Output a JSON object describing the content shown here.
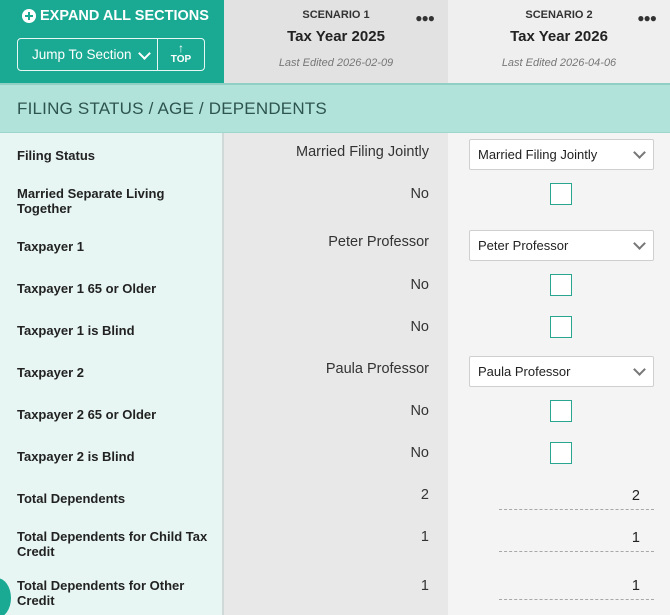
{
  "header": {
    "expand_all_label": "EXPAND ALL SECTIONS",
    "jump_label": "Jump To Section",
    "top_label": "TOP"
  },
  "scenarios": [
    {
      "label": "SCENARIO 1",
      "title": "Tax Year 2025",
      "edited": "Last Edited 2026-02-09"
    },
    {
      "label": "SCENARIO 2",
      "title": "Tax Year 2026",
      "edited": "Last Edited 2026-04-06"
    }
  ],
  "section": {
    "title": "FILING STATUS / AGE / DEPENDENTS"
  },
  "rows": [
    {
      "label": "Filing Status",
      "s1": "Married Filing Jointly",
      "s2": "Married Filing Jointly",
      "s2_type": "select"
    },
    {
      "label": "Married Separate Living Together",
      "s1": "No",
      "s2_type": "checkbox",
      "s2_checked": false
    },
    {
      "label": "Taxpayer 1",
      "s1": "Peter Professor",
      "s2": "Peter Professor",
      "s2_type": "select"
    },
    {
      "label": "Taxpayer 1 65 or Older",
      "s1": "No",
      "s2_type": "checkbox",
      "s2_checked": false
    },
    {
      "label": "Taxpayer 1 is Blind",
      "s1": "No",
      "s2_type": "checkbox",
      "s2_checked": false
    },
    {
      "label": "Taxpayer 2",
      "s1": "Paula Professor",
      "s2": "Paula Professor",
      "s2_type": "select"
    },
    {
      "label": "Taxpayer 2 65 or Older",
      "s1": "No",
      "s2_type": "checkbox",
      "s2_checked": false
    },
    {
      "label": "Taxpayer 2 is Blind",
      "s1": "No",
      "s2_type": "checkbox",
      "s2_checked": false
    },
    {
      "label": "Total Dependents",
      "s1": "2",
      "s2": "2",
      "s2_type": "number"
    },
    {
      "label": "Total Dependents for Child Tax Credit",
      "s1": "1",
      "s2": "1",
      "s2_type": "number"
    },
    {
      "label": "Total Dependents for Other Credit",
      "s1": "1",
      "s2": "1",
      "s2_type": "number"
    }
  ],
  "colors": {
    "accent": "#1aaa93",
    "section_bar": "#b1e3da",
    "label_column": "#e7f6f3"
  }
}
